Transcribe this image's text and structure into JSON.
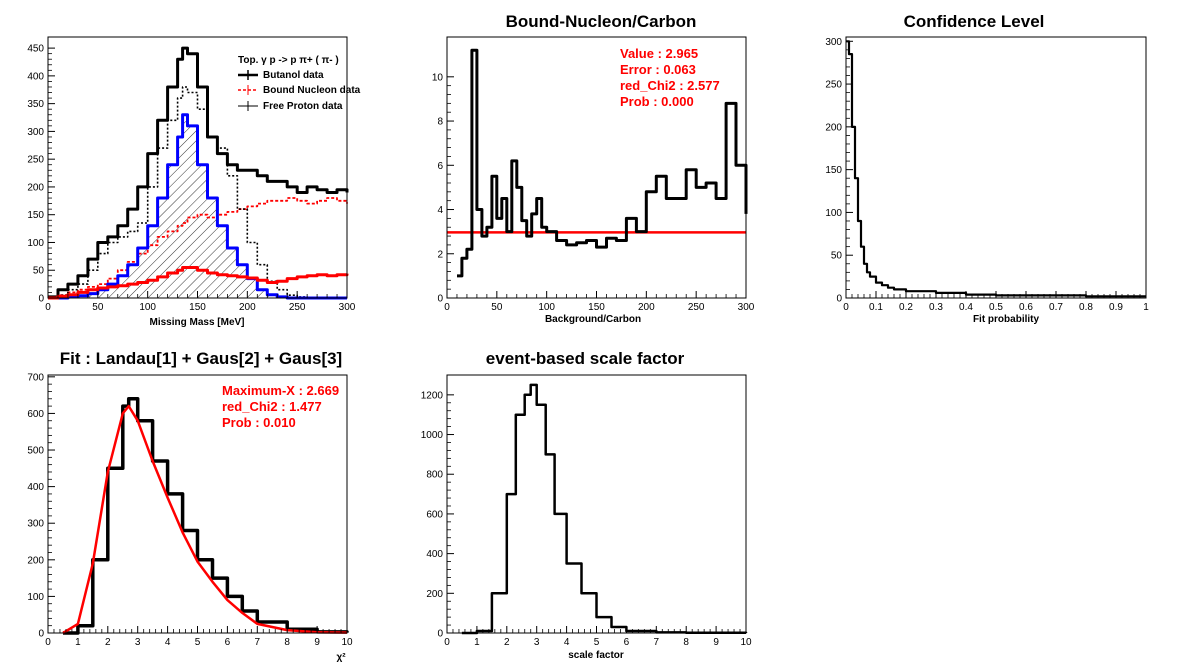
{
  "chart_data": [
    {
      "id": "missing-mass",
      "type": "line",
      "title": "",
      "xlabel": "Missing Mass [MeV]",
      "ylabel": "",
      "xlim": [
        0,
        300
      ],
      "ylim": [
        0,
        470
      ],
      "xticks": [
        0,
        50,
        100,
        150,
        200,
        250,
        300
      ],
      "yticks": [
        0,
        50,
        100,
        150,
        200,
        250,
        300,
        350,
        400,
        450
      ],
      "legend": {
        "position": "top-right",
        "title": "Top.  γ p -> p  π+ ( π- )",
        "entries": [
          "Butanol data",
          "Bound Nucleon data",
          "Free Proton data"
        ]
      },
      "x": [
        0,
        10,
        20,
        30,
        40,
        50,
        60,
        70,
        80,
        90,
        100,
        110,
        120,
        130,
        135,
        140,
        150,
        160,
        170,
        180,
        190,
        200,
        210,
        220,
        230,
        240,
        250,
        260,
        270,
        280,
        290,
        300
      ],
      "series": [
        {
          "name": "Butanol data",
          "color": "#000000",
          "values": [
            2,
            15,
            25,
            40,
            70,
            100,
            110,
            130,
            160,
            200,
            260,
            320,
            380,
            430,
            450,
            440,
            380,
            290,
            260,
            240,
            230,
            230,
            220,
            210,
            210,
            200,
            190,
            200,
            195,
            190,
            195,
            190
          ]
        },
        {
          "name": "Bound Nucleon data",
          "color": "#ff0000",
          "values": [
            0,
            5,
            10,
            15,
            20,
            25,
            35,
            50,
            65,
            80,
            95,
            110,
            120,
            130,
            135,
            145,
            150,
            145,
            150,
            155,
            160,
            165,
            170,
            175,
            175,
            180,
            175,
            170,
            175,
            180,
            175,
            170
          ]
        },
        {
          "name": "Free Proton data",
          "color": "#000000",
          "values": [
            0,
            5,
            15,
            25,
            50,
            80,
            100,
            110,
            120,
            135,
            200,
            270,
            320,
            360,
            380,
            370,
            340,
            290,
            270,
            220,
            160,
            100,
            60,
            30,
            15,
            5,
            2,
            0,
            0,
            0,
            0,
            0
          ]
        },
        {
          "color": "#0000ff",
          "values": [
            0,
            0,
            2,
            4,
            8,
            15,
            25,
            40,
            60,
            90,
            130,
            180,
            240,
            290,
            330,
            310,
            240,
            180,
            130,
            90,
            60,
            35,
            15,
            6,
            2,
            0,
            0,
            0,
            0,
            0,
            0,
            0
          ]
        },
        {
          "color": "#ff0000",
          "values": [
            0,
            3,
            6,
            10,
            15,
            18,
            20,
            22,
            25,
            28,
            32,
            38,
            45,
            50,
            55,
            55,
            50,
            45,
            42,
            40,
            38,
            36,
            32,
            28,
            30,
            35,
            38,
            40,
            42,
            40,
            42,
            44
          ]
        }
      ]
    },
    {
      "id": "bound-carbon",
      "type": "line",
      "title": "Bound-Nucleon/Carbon",
      "xlabel": "Background/Carbon",
      "ylabel": "",
      "xlim": [
        0,
        300
      ],
      "ylim": [
        0,
        11.8
      ],
      "xticks": [
        0,
        50,
        100,
        150,
        200,
        250,
        300
      ],
      "yticks": [
        0,
        2,
        4,
        6,
        8,
        10
      ],
      "stats": [
        "Value : 2.965",
        "Error : 0.063",
        "red_Chi2 : 2.577",
        "Prob : 0.000"
      ],
      "fit": {
        "y": 2.965,
        "xmin": 0,
        "xmax": 300,
        "color": "#ff0000"
      },
      "x": [
        10,
        15,
        20,
        25,
        30,
        35,
        40,
        45,
        50,
        55,
        60,
        65,
        70,
        75,
        80,
        85,
        90,
        95,
        100,
        110,
        120,
        130,
        140,
        150,
        160,
        170,
        180,
        190,
        200,
        210,
        220,
        230,
        240,
        250,
        260,
        270,
        280,
        290,
        300
      ],
      "series": [
        {
          "name": "data",
          "color": "#000000",
          "values": [
            1.0,
            1.8,
            2.2,
            11.2,
            4.0,
            2.8,
            3.2,
            5.5,
            3.6,
            4.5,
            3.0,
            6.2,
            5.0,
            3.5,
            2.8,
            3.8,
            4.5,
            3.2,
            3.0,
            2.6,
            2.4,
            2.5,
            2.6,
            2.3,
            2.7,
            2.6,
            3.6,
            3.0,
            4.8,
            5.5,
            4.5,
            4.5,
            5.8,
            5.0,
            5.2,
            4.5,
            8.8,
            6.0,
            3.8
          ]
        }
      ]
    },
    {
      "id": "confidence",
      "type": "line",
      "title": "Confidence Level",
      "xlabel": "Fit probability",
      "ylabel": "",
      "xlim": [
        0,
        1
      ],
      "ylim": [
        0,
        305
      ],
      "xticks": [
        0,
        0.1,
        0.2,
        0.3,
        0.4,
        0.5,
        0.6,
        0.7,
        0.8,
        0.9,
        1
      ],
      "yticks": [
        0,
        50,
        100,
        150,
        200,
        250,
        300
      ],
      "x": [
        0.0,
        0.01,
        0.02,
        0.03,
        0.04,
        0.05,
        0.06,
        0.07,
        0.08,
        0.1,
        0.12,
        0.14,
        0.16,
        0.2,
        0.3,
        0.4,
        0.5,
        0.6,
        0.8,
        1.0
      ],
      "series": [
        {
          "name": "data",
          "color": "#000000",
          "values": [
            300,
            285,
            200,
            140,
            90,
            60,
            40,
            30,
            25,
            18,
            15,
            12,
            10,
            8,
            6,
            4,
            3,
            3,
            2,
            2
          ]
        }
      ]
    },
    {
      "id": "fit-chi2",
      "type": "line",
      "title": "Fit : Landau[1] + Gaus[2] + Gaus[3]",
      "xlabel": "χ²",
      "ylabel": "",
      "xlim": [
        0,
        10
      ],
      "ylim": [
        0,
        705
      ],
      "xticks": [
        0,
        1,
        2,
        3,
        4,
        5,
        6,
        7,
        8,
        9,
        10
      ],
      "yticks": [
        0,
        100,
        200,
        300,
        400,
        500,
        600,
        700
      ],
      "stats": [
        "Maximum-X : 2.669",
        "red_Chi2 : 1.477",
        "Prob : 0.010"
      ],
      "x": [
        0.5,
        1.0,
        1.5,
        2.0,
        2.5,
        2.7,
        3.0,
        3.5,
        4.0,
        4.5,
        5.0,
        5.5,
        6.0,
        6.5,
        7.0,
        8.0,
        9.0,
        10.0
      ],
      "series": [
        {
          "name": "data",
          "color": "#000000",
          "values": [
            0,
            20,
            200,
            450,
            620,
            640,
            580,
            470,
            380,
            280,
            200,
            150,
            100,
            60,
            30,
            10,
            3,
            1
          ]
        },
        {
          "name": "fit",
          "color": "#ff0000",
          "values": [
            0,
            25,
            190,
            440,
            600,
            620,
            580,
            470,
            370,
            275,
            195,
            140,
            90,
            55,
            25,
            8,
            2,
            1
          ]
        }
      ]
    },
    {
      "id": "scale-factor",
      "type": "line",
      "title": "event-based scale factor",
      "xlabel": "scale factor",
      "ylabel": "",
      "xlim": [
        0,
        10
      ],
      "ylim": [
        0,
        1300
      ],
      "xticks": [
        0,
        1,
        2,
        3,
        4,
        5,
        6,
        7,
        8,
        9,
        10
      ],
      "yticks": [
        0,
        200,
        400,
        600,
        800,
        1000,
        1200
      ],
      "x": [
        0.5,
        1.0,
        1.5,
        2.0,
        2.3,
        2.6,
        2.8,
        3.0,
        3.3,
        3.6,
        4.0,
        4.5,
        5.0,
        5.5,
        6.0,
        7.0,
        8.0,
        10.0
      ],
      "series": [
        {
          "name": "data",
          "color": "#000000",
          "values": [
            0,
            10,
            200,
            700,
            1100,
            1200,
            1250,
            1150,
            900,
            600,
            350,
            200,
            80,
            30,
            10,
            3,
            1,
            0
          ]
        }
      ]
    }
  ]
}
